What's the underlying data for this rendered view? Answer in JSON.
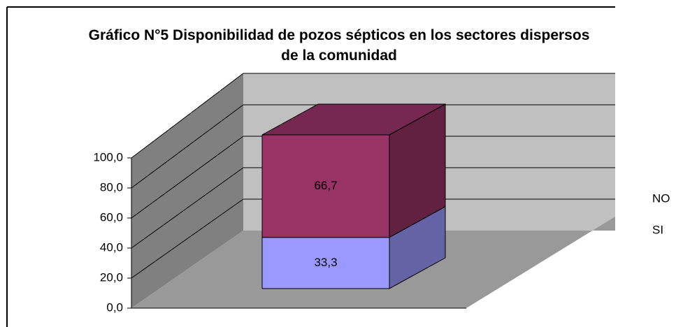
{
  "chart_data": {
    "type": "bar3d_stacked",
    "title": "Gráfico N°5 Disponibilidad de pozos sépticos en los sectores dispersos de la comunidad",
    "categories": [
      null
    ],
    "series": [
      {
        "name": "SI",
        "color": "#9999ff",
        "values": [
          33.3
        ],
        "value_labels": [
          "33,3"
        ]
      },
      {
        "name": "NO",
        "color": "#993366",
        "values": [
          66.7
        ],
        "value_labels": [
          "66,7"
        ]
      }
    ],
    "ylim": [
      0,
      100
    ],
    "yticks": [
      {
        "value": 0,
        "label": "0,0"
      },
      {
        "value": 20,
        "label": "20,0"
      },
      {
        "value": 40,
        "label": "40,0"
      },
      {
        "value": 60,
        "label": "60,0"
      },
      {
        "value": 80,
        "label": "80,0"
      },
      {
        "value": 100,
        "label": "100,0"
      }
    ],
    "grid": true,
    "legend": "right"
  }
}
